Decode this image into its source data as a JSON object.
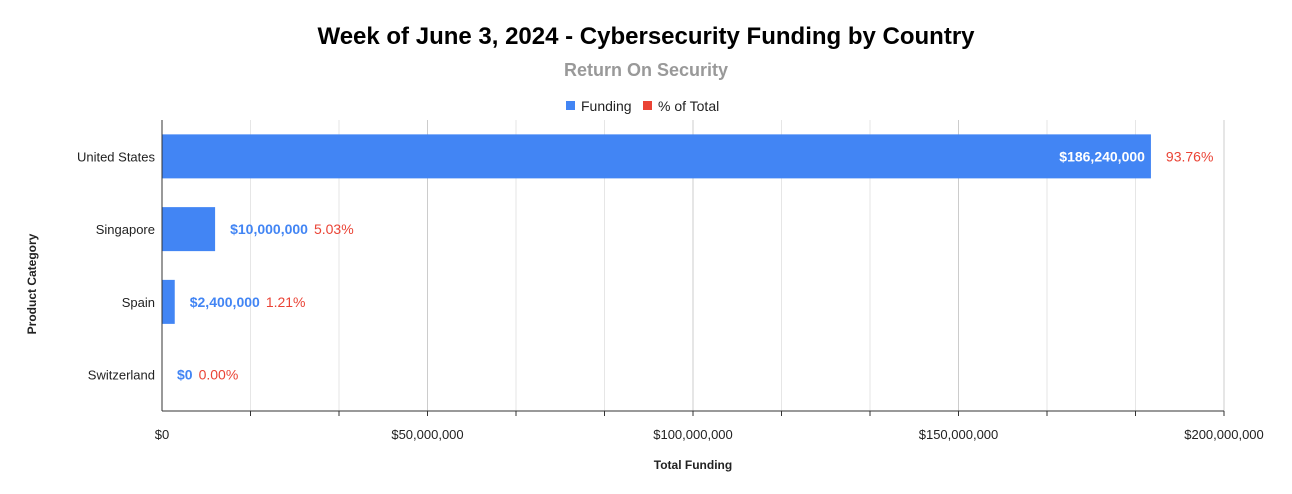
{
  "chart_data": {
    "type": "bar",
    "orientation": "horizontal",
    "title": "Week of June 3, 2024 - Cybersecurity Funding by Country",
    "subtitle": "Return On Security",
    "xlabel": "Total Funding",
    "ylabel": "Product Category",
    "categories": [
      "United States",
      "Singapore",
      "Spain",
      "Switzerland"
    ],
    "series": [
      {
        "name": "Funding",
        "values": [
          186240000,
          10000000,
          2400000,
          0
        ],
        "labels": [
          "$186,240,000",
          "$10,000,000",
          "$2,400,000",
          "$0"
        ]
      },
      {
        "name": "% of Total",
        "values": [
          93.76,
          5.03,
          1.21,
          0.0
        ],
        "labels": [
          "93.76%",
          "5.03%",
          "1.21%",
          "0.00%"
        ]
      }
    ],
    "xlim": [
      0,
      200000000
    ],
    "xticks": [
      0,
      50000000,
      100000000,
      150000000,
      200000000
    ],
    "xtick_labels": [
      "$0",
      "$50,000,000",
      "$100,000,000",
      "$150,000,000",
      "$200,000,000"
    ],
    "grid": true,
    "legend_position": "top-center",
    "colors": {
      "funding": "#4285F4",
      "percent": "#EA4335"
    }
  }
}
